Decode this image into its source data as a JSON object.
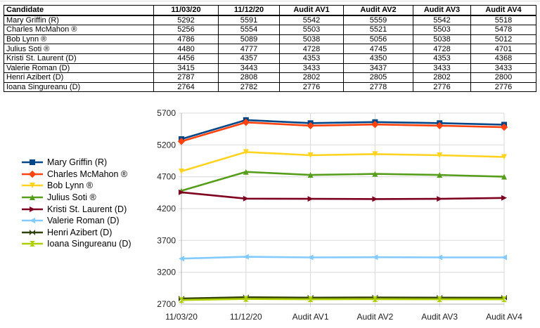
{
  "table": {
    "columns": [
      "Candidate",
      "11/03/20",
      "11/12/20",
      "Audit AV1",
      "Audit AV2",
      "Audit AV3",
      "Audit AV4"
    ],
    "rows": [
      {
        "candidate": "Mary Griffin (R)",
        "values": [
          5292,
          5591,
          5542,
          5559,
          5542,
          5518
        ]
      },
      {
        "candidate": "Charles McMahon ®",
        "values": [
          5256,
          5554,
          5503,
          5521,
          5503,
          5478
        ]
      },
      {
        "candidate": "Bob Lynn ®",
        "values": [
          4786,
          5089,
          5038,
          5056,
          5038,
          5012
        ]
      },
      {
        "candidate": "Julius Soti ®",
        "values": [
          4480,
          4777,
          4728,
          4745,
          4728,
          4701
        ]
      },
      {
        "candidate": "Kristi St. Laurent (D)",
        "values": [
          4456,
          4357,
          4353,
          4350,
          4353,
          4368
        ]
      },
      {
        "candidate": "Valerie Roman (D)",
        "values": [
          3415,
          3443,
          3433,
          3437,
          3433,
          3433
        ]
      },
      {
        "candidate": "Henri Azibert (D)",
        "values": [
          2787,
          2808,
          2802,
          2805,
          2802,
          2800
        ]
      },
      {
        "candidate": "Ioana Singureanu (D)",
        "values": [
          2764,
          2782,
          2776,
          2778,
          2776,
          2776
        ]
      }
    ]
  },
  "chart_data": {
    "type": "line",
    "categories": [
      "11/03/20",
      "11/12/20",
      "Audit AV1",
      "Audit AV2",
      "Audit AV3",
      "Audit AV4"
    ],
    "series": [
      {
        "name": "Mary Griffin (R)",
        "color": "#004586",
        "marker": "square",
        "values": [
          5292,
          5591,
          5542,
          5559,
          5542,
          5518
        ]
      },
      {
        "name": "Charles McMahon ®",
        "color": "#FF420E",
        "marker": "diamond",
        "values": [
          5256,
          5554,
          5503,
          5521,
          5503,
          5478
        ]
      },
      {
        "name": "Bob Lynn ®",
        "color": "#FFD320",
        "marker": "arrow-down",
        "values": [
          4786,
          5089,
          5038,
          5056,
          5038,
          5012
        ]
      },
      {
        "name": "Julius Soti ®",
        "color": "#579D1C",
        "marker": "arrow-up",
        "values": [
          4480,
          4777,
          4728,
          4745,
          4728,
          4701
        ]
      },
      {
        "name": "Kristi St. Laurent (D)",
        "color": "#7E0021",
        "marker": "arrow-right",
        "values": [
          4456,
          4357,
          4353,
          4350,
          4353,
          4368
        ]
      },
      {
        "name": "Valerie Roman (D)",
        "color": "#83CAFF",
        "marker": "arrow-left",
        "values": [
          3415,
          3443,
          3433,
          3437,
          3433,
          3433
        ]
      },
      {
        "name": "Henri Azibert (D)",
        "color": "#314004",
        "marker": "bowtie",
        "values": [
          2787,
          2808,
          2802,
          2805,
          2802,
          2800
        ]
      },
      {
        "name": "Ioana Singureanu (D)",
        "color": "#AECF00",
        "marker": "hourglass",
        "values": [
          2764,
          2782,
          2776,
          2778,
          2776,
          2776
        ]
      }
    ],
    "ylim": [
      2700,
      5700
    ],
    "yticks": [
      2700,
      3200,
      3700,
      4200,
      4700,
      5200,
      5700
    ],
    "ytick_step": 500,
    "grid": true,
    "legend_position": "left",
    "gridline_color": "#d9d9d9",
    "axis_color": "#b3b3b3"
  }
}
